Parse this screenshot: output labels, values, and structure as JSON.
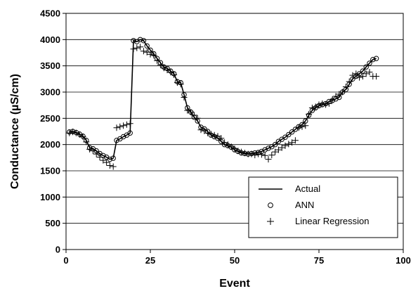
{
  "chart_data": {
    "type": "line",
    "xlabel": "Event",
    "ylabel": "Conductance (µS/cm)",
    "xlim": [
      0,
      100
    ],
    "ylim": [
      0,
      4500
    ],
    "xticks": [
      0,
      25,
      50,
      75,
      100
    ],
    "yticks": [
      0,
      500,
      1000,
      1500,
      2000,
      2500,
      3000,
      3500,
      4000,
      4500
    ],
    "grid": "horizontal",
    "legend_position": "bottom-right",
    "series": [
      {
        "name": "Actual",
        "style": "line",
        "x": [
          1,
          2,
          3,
          4,
          5,
          6,
          7,
          8,
          9,
          10,
          11,
          12,
          13,
          14,
          15,
          16,
          17,
          18,
          19,
          20,
          21,
          22,
          23,
          24,
          25,
          26,
          27,
          28,
          29,
          30,
          31,
          32,
          33,
          34,
          35,
          36,
          37,
          38,
          39,
          40,
          41,
          42,
          43,
          44,
          45,
          46,
          47,
          48,
          49,
          50,
          51,
          52,
          53,
          54,
          55,
          56,
          57,
          58,
          59,
          60,
          61,
          62,
          63,
          64,
          65,
          66,
          67,
          68,
          69,
          70,
          71,
          72,
          73,
          74,
          75,
          76,
          77,
          78,
          79,
          80,
          81,
          82,
          83,
          84,
          85,
          86,
          87,
          88,
          89,
          90,
          91,
          92
        ],
        "y": [
          2240,
          2250,
          2230,
          2200,
          2160,
          2080,
          1940,
          1920,
          1880,
          1830,
          1790,
          1760,
          1720,
          1740,
          2080,
          2110,
          2150,
          2180,
          2220,
          3980,
          3960,
          4000,
          3980,
          3880,
          3800,
          3730,
          3640,
          3560,
          3480,
          3450,
          3400,
          3350,
          3200,
          3180,
          2950,
          2700,
          2620,
          2520,
          2450,
          2330,
          2300,
          2250,
          2180,
          2150,
          2120,
          2060,
          2000,
          1980,
          1950,
          1900,
          1870,
          1840,
          1830,
          1820,
          1830,
          1840,
          1850,
          1870,
          1900,
          1930,
          1960,
          2000,
          2060,
          2100,
          2140,
          2190,
          2240,
          2290,
          2340,
          2380,
          2450,
          2560,
          2650,
          2700,
          2740,
          2760,
          2780,
          2820,
          2840,
          2870,
          2900,
          3000,
          3050,
          3150,
          3250,
          3300,
          3350,
          3400,
          3480,
          3550,
          3620,
          3640
        ]
      },
      {
        "name": "ANN",
        "style": "circle",
        "x": [
          1,
          2,
          3,
          4,
          5,
          6,
          7,
          8,
          9,
          10,
          11,
          12,
          13,
          14,
          15,
          16,
          17,
          18,
          19,
          20,
          21,
          22,
          23,
          24,
          25,
          26,
          27,
          28,
          29,
          30,
          31,
          32,
          33,
          34,
          35,
          36,
          37,
          38,
          39,
          40,
          41,
          42,
          43,
          44,
          45,
          46,
          47,
          48,
          49,
          50,
          51,
          52,
          53,
          54,
          55,
          56,
          57,
          58,
          59,
          60,
          61,
          62,
          63,
          64,
          65,
          66,
          67,
          68,
          69,
          70,
          71,
          72,
          73,
          74,
          75,
          76,
          77,
          78,
          79,
          80,
          81,
          82,
          83,
          84,
          85,
          86,
          87,
          88,
          89,
          90,
          91,
          92
        ],
        "y": [
          2240,
          2250,
          2230,
          2200,
          2160,
          2080,
          1940,
          1920,
          1880,
          1830,
          1790,
          1760,
          1720,
          1740,
          2080,
          2110,
          2150,
          2180,
          2220,
          3980,
          3960,
          4000,
          3980,
          3880,
          3800,
          3730,
          3640,
          3560,
          3480,
          3450,
          3400,
          3350,
          3200,
          3180,
          2950,
          2700,
          2620,
          2520,
          2450,
          2330,
          2300,
          2250,
          2180,
          2150,
          2120,
          2060,
          2000,
          1980,
          1950,
          1900,
          1870,
          1840,
          1830,
          1820,
          1830,
          1840,
          1850,
          1870,
          1900,
          1930,
          1960,
          2000,
          2060,
          2100,
          2140,
          2190,
          2240,
          2290,
          2340,
          2380,
          2450,
          2560,
          2650,
          2700,
          2740,
          2760,
          2780,
          2820,
          2840,
          2870,
          2900,
          3000,
          3050,
          3150,
          3250,
          3300,
          3350,
          3400,
          3480,
          3550,
          3620,
          3640
        ]
      },
      {
        "name": "Linear Regression",
        "style": "plus",
        "x": [
          1,
          2,
          3,
          4,
          5,
          6,
          7,
          8,
          9,
          10,
          11,
          12,
          13,
          14,
          15,
          16,
          17,
          18,
          19,
          20,
          21,
          22,
          23,
          24,
          25,
          26,
          27,
          28,
          29,
          30,
          31,
          32,
          33,
          34,
          35,
          36,
          37,
          38,
          39,
          40,
          41,
          42,
          43,
          44,
          45,
          46,
          47,
          48,
          49,
          50,
          51,
          52,
          53,
          54,
          55,
          56,
          57,
          58,
          59,
          60,
          61,
          62,
          63,
          64,
          65,
          66,
          67,
          68,
          69,
          70,
          71,
          72,
          73,
          74,
          75,
          76,
          77,
          78,
          79,
          80,
          81,
          82,
          83,
          84,
          85,
          86,
          87,
          88,
          89,
          90,
          91,
          92
        ],
        "y": [
          2220,
          2240,
          2220,
          2190,
          2150,
          2050,
          1910,
          1880,
          1820,
          1760,
          1700,
          1660,
          1600,
          1580,
          2320,
          2340,
          2360,
          2380,
          2400,
          3820,
          3840,
          3860,
          3780,
          3760,
          3720,
          3700,
          3600,
          3520,
          3460,
          3420,
          3380,
          3330,
          3180,
          3150,
          2900,
          2650,
          2620,
          2560,
          2500,
          2280,
          2260,
          2220,
          2200,
          2180,
          2160,
          2120,
          2040,
          2000,
          1960,
          1920,
          1880,
          1860,
          1840,
          1820,
          1820,
          1800,
          1820,
          1810,
          1790,
          1720,
          1800,
          1860,
          1900,
          1940,
          1980,
          2010,
          2040,
          2080,
          2320,
          2340,
          2360,
          2580,
          2700,
          2720,
          2760,
          2780,
          2760,
          2780,
          2860,
          2920,
          2960,
          3000,
          3100,
          3200,
          3320,
          3350,
          3280,
          3300,
          3350,
          3380,
          3300,
          3300
        ]
      }
    ]
  }
}
